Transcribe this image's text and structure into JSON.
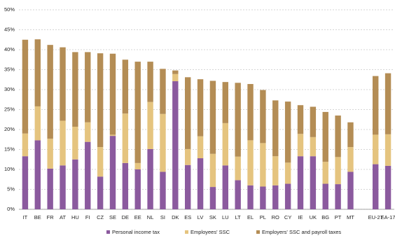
{
  "chart_data": {
    "type": "stacked-bar",
    "categories": [
      "IT",
      "BE",
      "FR",
      "AT",
      "HU",
      "FI",
      "CZ",
      "SE",
      "DE",
      "EE",
      "NL",
      "SI",
      "DK",
      "ES",
      "LV",
      "SK",
      "LU",
      "LT",
      "EL",
      "PL",
      "RO",
      "CY",
      "IE",
      "UK",
      "BG",
      "PT",
      "MT",
      null,
      "EU-27",
      "EA-17"
    ],
    "series": [
      {
        "name": "Personal income tax",
        "color": "#8b5a9e",
        "values": [
          13.3,
          17.3,
          10.2,
          11.0,
          12.5,
          16.9,
          8.2,
          18.4,
          11.6,
          10.0,
          15.1,
          9.4,
          32.1,
          11.1,
          12.8,
          5.6,
          11.0,
          7.3,
          6.0,
          5.7,
          6.0,
          6.4,
          13.3,
          13.3,
          6.4,
          6.3,
          9.4,
          null,
          11.3,
          10.9
        ]
      },
      {
        "name": "Employees' SSC",
        "color": "#e5c47f",
        "values": [
          5.7,
          8.5,
          7.5,
          11.2,
          8.2,
          4.9,
          7.4,
          0.3,
          12.4,
          1.6,
          11.8,
          14.5,
          1.8,
          4.0,
          5.5,
          8.3,
          10.6,
          5.9,
          11.3,
          10.9,
          7.3,
          5.3,
          5.6,
          4.8,
          5.5,
          6.8,
          6.2,
          null,
          7.4,
          7.9
        ]
      },
      {
        "name": "Employers' SSC and payroll taxes",
        "color": "#b48d55",
        "values": [
          23.5,
          16.8,
          23.5,
          18.4,
          18.7,
          17.6,
          23.5,
          20.3,
          13.5,
          25.4,
          10.1,
          11.3,
          0.9,
          18.0,
          14.3,
          18.3,
          10.3,
          18.5,
          14.1,
          13.3,
          14.0,
          15.3,
          7.2,
          7.6,
          12.5,
          10.4,
          6.2,
          null,
          14.7,
          15.3
        ]
      }
    ],
    "ylim": [
      0,
      50
    ],
    "yticks": [
      {
        "value": 0,
        "label": "0%"
      },
      {
        "value": 5,
        "label": "5%"
      },
      {
        "value": 10,
        "label": "10%"
      },
      {
        "value": 15,
        "label": "15%"
      },
      {
        "value": 20,
        "label": "20%"
      },
      {
        "value": 25,
        "label": "25%"
      },
      {
        "value": 30,
        "label": "30%"
      },
      {
        "value": 35,
        "label": "35%"
      },
      {
        "value": 40,
        "label": "40%"
      },
      {
        "value": 45,
        "label": "45%"
      },
      {
        "value": 50,
        "label": "50%"
      }
    ],
    "grid": true
  }
}
